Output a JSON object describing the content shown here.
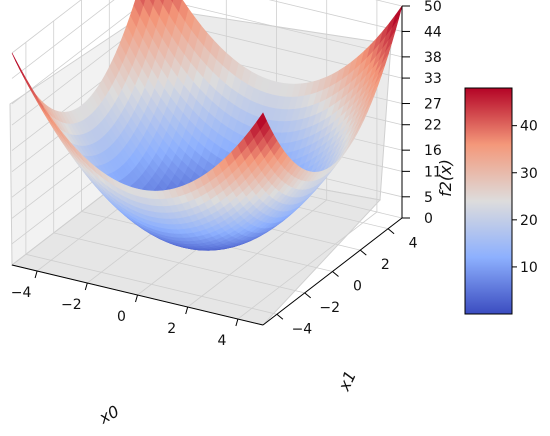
{
  "chart_data": {
    "type": "surface",
    "function": "f2(x) = x0^2 + x1^2",
    "x_ticks": [
      -4,
      -2,
      0,
      2,
      4
    ],
    "y_ticks": [
      -4,
      -2,
      0,
      2,
      4
    ],
    "z_ticks": [
      0,
      5,
      11,
      16,
      22,
      27,
      33,
      38,
      44,
      50
    ],
    "xlim": [
      -5,
      5
    ],
    "ylim": [
      -5,
      5
    ],
    "zlim": [
      0,
      50
    ],
    "x_label": "x0",
    "y_label": "x1",
    "z_label": "f2(x)",
    "colorbar": {
      "ticks": [
        10,
        20,
        30,
        40
      ],
      "range": [
        0,
        48
      ],
      "colormap": "coolwarm",
      "colors": [
        "#3b4cc0",
        "#8db0fe",
        "#dddcdc",
        "#f4987a",
        "#b40426"
      ]
    },
    "grid": true
  }
}
